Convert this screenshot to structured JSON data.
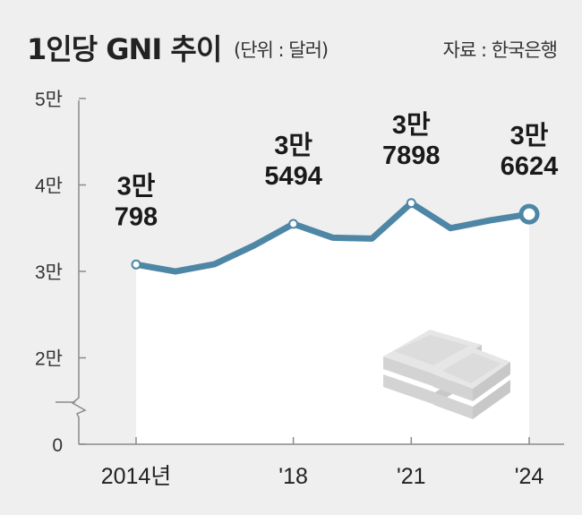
{
  "header": {
    "title": "1인당 GNI 추이",
    "unit": "(단위 : 달러)",
    "source": "자료 : 한국은행"
  },
  "chart_data": {
    "type": "line",
    "title": "1인당 GNI 추이",
    "unit": "달러",
    "source": "한국은행",
    "x": [
      2014,
      2015,
      2016,
      2017,
      2018,
      2019,
      2020,
      2021,
      2022,
      2023,
      2024
    ],
    "x_tick_labels": [
      {
        "x": 2014,
        "label": "2014년"
      },
      {
        "x": 2018,
        "label": "'18"
      },
      {
        "x": 2021,
        "label": "'21"
      },
      {
        "x": 2024,
        "label": "'24"
      }
    ],
    "y_ticks": [
      {
        "value": 0,
        "label": "0"
      },
      {
        "value": 20000,
        "label": "2만"
      },
      {
        "value": 30000,
        "label": "3만"
      },
      {
        "value": 40000,
        "label": "4만"
      },
      {
        "value": 50000,
        "label": "5만"
      }
    ],
    "series": [
      {
        "values": [
          30798,
          29990,
          30840,
          33000,
          35494,
          33900,
          33800,
          37898,
          35000,
          35900,
          36624
        ]
      }
    ],
    "data_labels": [
      {
        "x": 2014,
        "lines": [
          "3만",
          "798"
        ]
      },
      {
        "x": 2018,
        "lines": [
          "3만",
          "5494"
        ]
      },
      {
        "x": 2021,
        "lines": [
          "3만",
          "7898"
        ]
      },
      {
        "x": 2024,
        "lines": [
          "3만",
          "6624"
        ]
      }
    ],
    "axis_break": true,
    "colors": {
      "line": "#4e86a6",
      "fill": "#ffffff",
      "background": "#efefef"
    }
  }
}
